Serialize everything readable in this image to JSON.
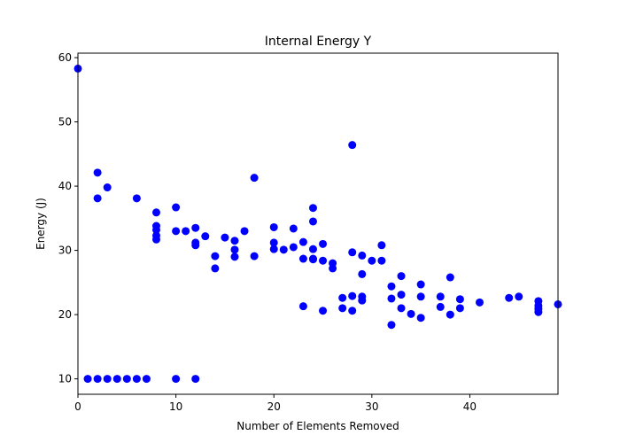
{
  "chart_data": {
    "type": "scatter",
    "title": "Internal Energy Y",
    "xlabel": "Number of Elements Removed",
    "ylabel": "Energy (J)",
    "xlim": [
      0,
      49
    ],
    "ylim": [
      7.6,
      60.7
    ],
    "xticks": [
      0,
      10,
      20,
      30,
      40
    ],
    "yticks": [
      10,
      20,
      30,
      40,
      50,
      60
    ],
    "grid": false,
    "marker_color": "#0000ff",
    "series": [
      {
        "x": [
          0,
          1,
          2,
          2,
          2,
          3,
          3,
          4,
          5,
          6,
          6,
          7,
          8,
          8,
          8,
          8,
          8,
          10,
          10,
          10,
          11,
          12,
          12,
          12,
          12,
          13,
          14,
          14,
          15,
          16,
          16,
          16,
          17,
          18,
          18,
          20,
          20,
          20,
          21,
          22,
          22,
          23,
          23,
          23,
          24,
          24,
          24,
          24,
          24,
          25,
          25,
          25,
          26,
          26,
          27,
          27,
          28,
          28,
          28,
          28,
          29,
          29,
          29,
          29,
          30,
          31,
          31,
          32,
          32,
          32,
          33,
          33,
          33,
          34,
          35,
          35,
          35,
          37,
          37,
          38,
          38,
          39,
          39,
          41,
          44,
          45,
          47,
          47,
          47,
          47,
          49
        ],
        "y": [
          58.3,
          10.0,
          10.0,
          38.1,
          42.1,
          10.0,
          39.8,
          10.0,
          10.0,
          10.0,
          38.1,
          10.0,
          35.9,
          33.8,
          33.2,
          32.3,
          31.7,
          10.0,
          36.7,
          33.0,
          33.0,
          10.0,
          33.5,
          31.2,
          30.8,
          32.2,
          29.1,
          27.2,
          32.0,
          31.5,
          30.1,
          29.0,
          33.0,
          41.3,
          29.1,
          33.6,
          31.2,
          30.2,
          30.1,
          33.4,
          30.5,
          31.3,
          28.7,
          21.3,
          36.6,
          34.5,
          30.2,
          28.7,
          28.6,
          31.0,
          28.4,
          20.6,
          28.0,
          27.2,
          22.6,
          21.0,
          46.4,
          29.7,
          22.9,
          20.6,
          29.2,
          26.3,
          22.8,
          22.2,
          28.4,
          30.8,
          28.4,
          24.4,
          22.5,
          18.4,
          26.0,
          23.1,
          21.0,
          20.1,
          24.7,
          22.8,
          19.5,
          22.8,
          21.2,
          25.8,
          20.0,
          22.4,
          21.0,
          21.9,
          22.6,
          22.8,
          22.1,
          21.4,
          20.9,
          20.4,
          21.6
        ]
      }
    ]
  }
}
